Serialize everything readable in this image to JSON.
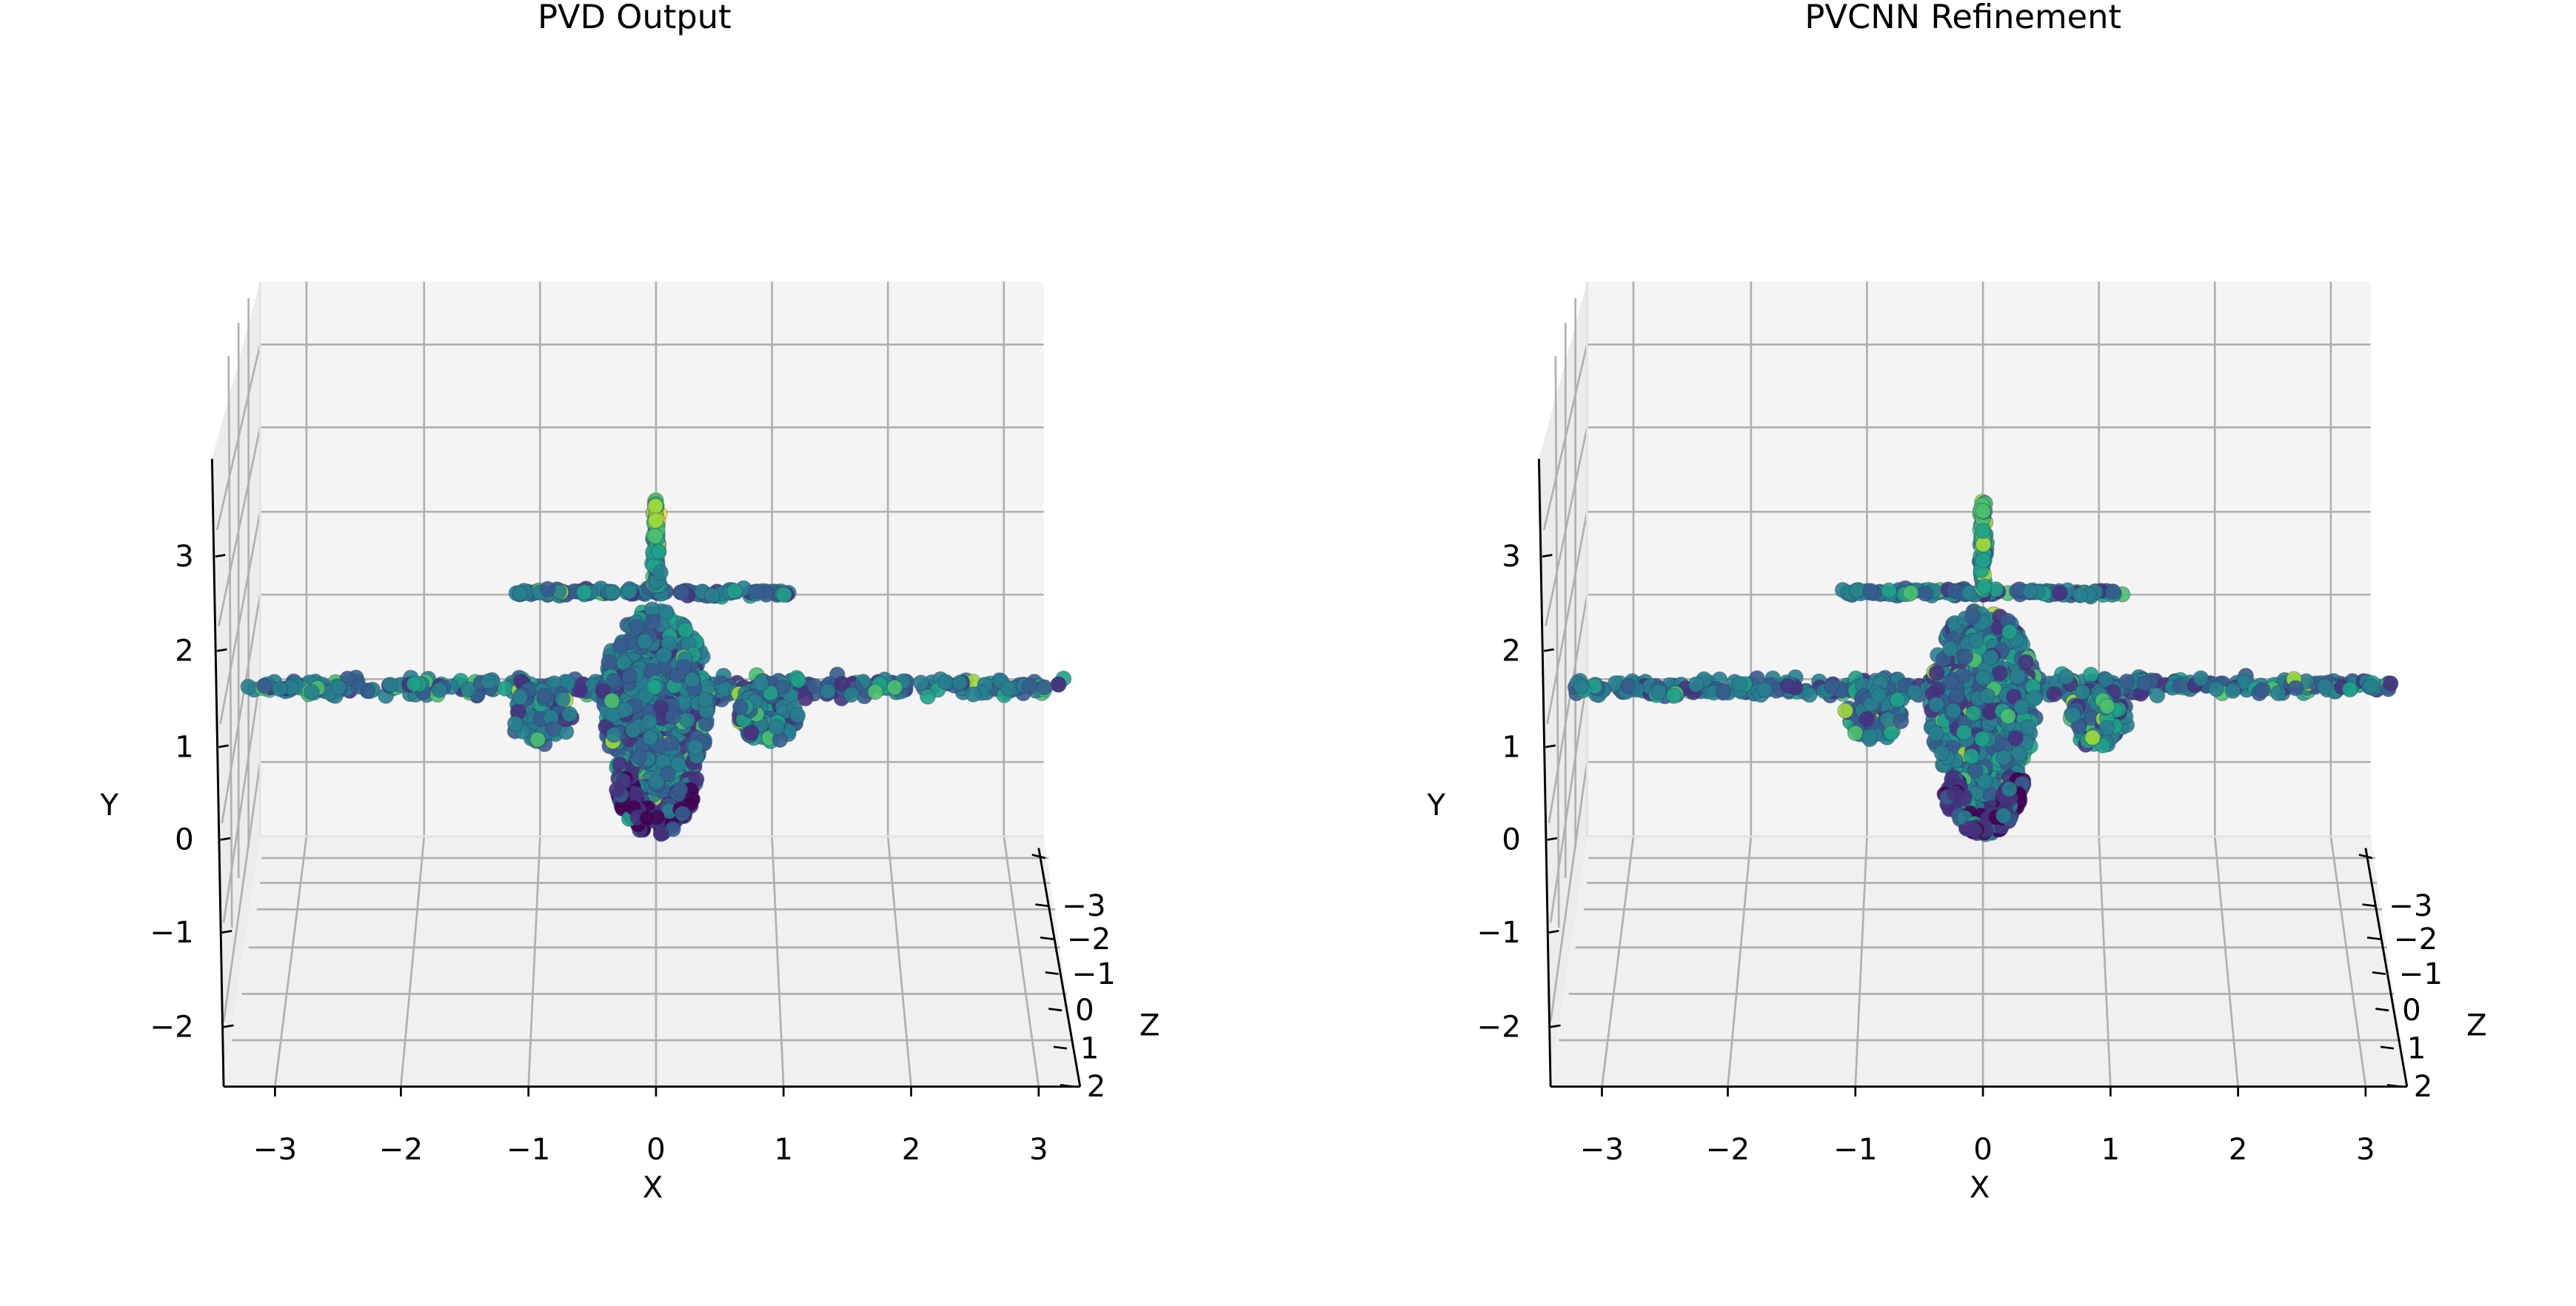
{
  "chart_data": [
    {
      "type": "scatter",
      "projection": "3d",
      "title": "PVD Output",
      "xlabel": "X",
      "ylabel": "Y",
      "zlabel": "Z",
      "xticks": [
        "−3",
        "−2",
        "−1",
        "0",
        "1",
        "2",
        "3"
      ],
      "yticks": [
        "−2",
        "−1",
        "0",
        "1",
        "2",
        "3"
      ],
      "zticks": [
        "−3",
        "−2",
        "−1",
        "0",
        "1",
        "2"
      ],
      "xlim": [
        -3.4,
        3.3
      ],
      "ylim": [
        -2.6,
        3.9
      ],
      "zlim": [
        -3.9,
        2.2
      ],
      "grid": true,
      "colormap": "viridis",
      "shape": "point cloud of an airplane viewed from the front",
      "series": [
        {
          "part": "fuselage",
          "x": [
            -0.45,
            0.45
          ],
          "y": [
            0.3,
            2.4
          ]
        },
        {
          "part": "nose",
          "x": [
            -0.3,
            0.3
          ],
          "y": [
            0.0,
            0.8
          ]
        },
        {
          "part": "wings",
          "x": [
            -3.2,
            3.2
          ],
          "y": [
            1.55,
            1.75
          ]
        },
        {
          "part": "horizontal-tail",
          "x": [
            -1.1,
            1.1
          ],
          "y": [
            2.55,
            2.7
          ]
        },
        {
          "part": "vertical-tail",
          "x": [
            -0.06,
            0.06
          ],
          "y": [
            2.7,
            3.55
          ]
        },
        {
          "part": "left-engine",
          "x": [
            -1.05,
            -0.6
          ],
          "y": [
            1.05,
            1.7
          ]
        },
        {
          "part": "right-engine",
          "x": [
            0.6,
            1.05
          ],
          "y": [
            1.05,
            1.7
          ]
        }
      ]
    },
    {
      "type": "scatter",
      "projection": "3d",
      "title": "PVCNN Refinement",
      "xlabel": "X",
      "ylabel": "Y",
      "zlabel": "Z",
      "xticks": [
        "−3",
        "−2",
        "−1",
        "0",
        "1",
        "2",
        "3"
      ],
      "yticks": [
        "−2",
        "−1",
        "0",
        "1",
        "2",
        "3"
      ],
      "zticks": [
        "−3",
        "−2",
        "−1",
        "0",
        "1",
        "2"
      ],
      "xlim": [
        -3.4,
        3.3
      ],
      "ylim": [
        -2.6,
        3.9
      ],
      "zlim": [
        -3.9,
        2.2
      ],
      "grid": true,
      "colormap": "viridis",
      "shape": "point cloud of an airplane viewed from the front",
      "series": [
        {
          "part": "fuselage",
          "x": [
            -0.45,
            0.45
          ],
          "y": [
            0.3,
            2.4
          ]
        },
        {
          "part": "nose",
          "x": [
            -0.3,
            0.3
          ],
          "y": [
            0.0,
            0.8
          ]
        },
        {
          "part": "wings",
          "x": [
            -3.2,
            3.2
          ],
          "y": [
            1.55,
            1.75
          ]
        },
        {
          "part": "horizontal-tail",
          "x": [
            -1.1,
            1.1
          ],
          "y": [
            2.55,
            2.7
          ]
        },
        {
          "part": "vertical-tail",
          "x": [
            -0.06,
            0.06
          ],
          "y": [
            2.7,
            3.55
          ]
        },
        {
          "part": "left-engine",
          "x": [
            -1.05,
            -0.6
          ],
          "y": [
            1.05,
            1.7
          ]
        },
        {
          "part": "right-engine",
          "x": [
            0.6,
            1.05
          ],
          "y": [
            1.05,
            1.7
          ]
        }
      ]
    }
  ]
}
